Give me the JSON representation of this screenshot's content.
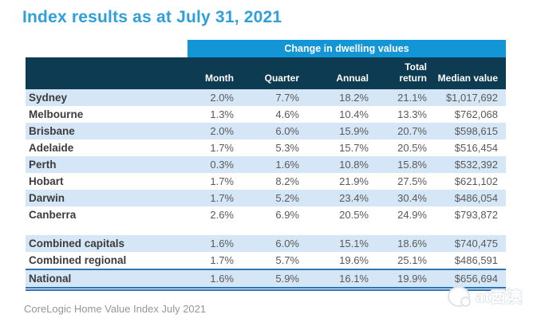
{
  "title": "Index results as at July 31, 2021",
  "table": {
    "group_header": "Change in dwelling values",
    "columns": [
      "Month",
      "Quarter",
      "Annual",
      "Total return",
      "Median value"
    ],
    "rows": [
      {
        "name": "Sydney",
        "values": [
          "2.0%",
          "7.7%",
          "18.2%",
          "21.1%",
          "$1,017,692"
        ]
      },
      {
        "name": "Melbourne",
        "values": [
          "1.3%",
          "4.6%",
          "10.4%",
          "13.3%",
          "$762,068"
        ]
      },
      {
        "name": "Brisbane",
        "values": [
          "2.0%",
          "6.0%",
          "15.9%",
          "20.7%",
          "$598,615"
        ]
      },
      {
        "name": "Adelaide",
        "values": [
          "1.7%",
          "5.3%",
          "15.7%",
          "20.5%",
          "$516,454"
        ]
      },
      {
        "name": "Perth",
        "values": [
          "0.3%",
          "1.6%",
          "10.8%",
          "15.8%",
          "$532,392"
        ]
      },
      {
        "name": "Hobart",
        "values": [
          "1.7%",
          "8.2%",
          "21.9%",
          "27.5%",
          "$621,102"
        ]
      },
      {
        "name": "Darwin",
        "values": [
          "1.7%",
          "5.2%",
          "23.4%",
          "30.4%",
          "$486,054"
        ]
      },
      {
        "name": "Canberra",
        "values": [
          "2.6%",
          "6.9%",
          "20.5%",
          "24.9%",
          "$793,872"
        ]
      }
    ],
    "summary_rows": [
      {
        "name": "Combined capitals",
        "values": [
          "1.6%",
          "6.0%",
          "15.1%",
          "18.6%",
          "$740,475"
        ]
      },
      {
        "name": "Combined regional",
        "values": [
          "1.7%",
          "5.7%",
          "19.6%",
          "25.1%",
          "$486,591"
        ]
      },
      {
        "name": "National",
        "values": [
          "1.6%",
          "5.9%",
          "16.1%",
          "19.9%",
          "$656,694"
        ]
      }
    ]
  },
  "footer": {
    "caption": "CoreLogic Home Value Index July 2021"
  },
  "watermark": {
    "text": "at西澳"
  },
  "colors": {
    "title_blue": "#2F9FDA",
    "band_blue": "#1396D5",
    "header_navy": "#0C3B52",
    "row_alt_blue": "#D5E7F6",
    "rule_blue": "#2E74B5"
  }
}
